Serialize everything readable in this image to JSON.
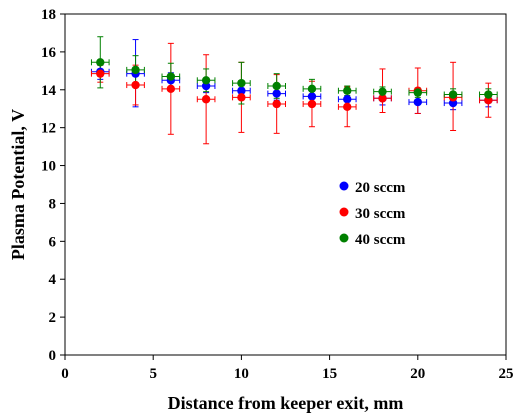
{
  "chart_data": {
    "type": "scatter",
    "title": "",
    "xlabel": "Distance from keeper exit, mm",
    "ylabel": "Plasma Potential, V",
    "xlim": [
      0,
      25
    ],
    "ylim": [
      0,
      18
    ],
    "xticks": [
      0,
      5,
      10,
      15,
      20,
      25
    ],
    "yticks": [
      0,
      2,
      4,
      6,
      8,
      10,
      12,
      14,
      16,
      18
    ],
    "x_error": 0.5,
    "grid": false,
    "legend_position": "right",
    "series": [
      {
        "name": "20 sccm",
        "color": "#0000ff",
        "points": [
          {
            "x": 2,
            "y": 14.95,
            "y_low": 14.55,
            "y_high": 15.3
          },
          {
            "x": 4,
            "y": 14.85,
            "y_low": 13.1,
            "y_high": 16.65
          },
          {
            "x": 6,
            "y": 14.5,
            "y_low": 14.1,
            "y_high": 14.9
          },
          {
            "x": 8,
            "y": 14.2,
            "y_low": 13.85,
            "y_high": 14.55
          },
          {
            "x": 10,
            "y": 13.95,
            "y_low": 13.6,
            "y_high": 14.3
          },
          {
            "x": 12,
            "y": 13.8,
            "y_low": 13.45,
            "y_high": 14.15
          },
          {
            "x": 14,
            "y": 13.65,
            "y_low": 13.3,
            "y_high": 14.0
          },
          {
            "x": 16,
            "y": 13.5,
            "y_low": 13.15,
            "y_high": 13.85
          },
          {
            "x": 18,
            "y": 13.55,
            "y_low": 13.2,
            "y_high": 13.9
          },
          {
            "x": 20,
            "y": 13.35,
            "y_low": 12.75,
            "y_high": 13.9
          },
          {
            "x": 22,
            "y": 13.3,
            "y_low": 12.95,
            "y_high": 13.65
          },
          {
            "x": 24,
            "y": 13.45,
            "y_low": 13.1,
            "y_high": 13.8
          }
        ]
      },
      {
        "name": "30 sccm",
        "color": "#ff0000",
        "points": [
          {
            "x": 2,
            "y": 14.85,
            "y_low": 14.4,
            "y_high": 15.3
          },
          {
            "x": 4,
            "y": 14.25,
            "y_low": 13.2,
            "y_high": 15.3
          },
          {
            "x": 6,
            "y": 14.05,
            "y_low": 11.65,
            "y_high": 16.45
          },
          {
            "x": 8,
            "y": 13.5,
            "y_low": 11.15,
            "y_high": 15.85
          },
          {
            "x": 10,
            "y": 13.6,
            "y_low": 11.75,
            "y_high": 15.45
          },
          {
            "x": 12,
            "y": 13.25,
            "y_low": 11.7,
            "y_high": 14.8
          },
          {
            "x": 14,
            "y": 13.25,
            "y_low": 12.05,
            "y_high": 14.45
          },
          {
            "x": 16,
            "y": 13.1,
            "y_low": 12.05,
            "y_high": 14.15
          },
          {
            "x": 18,
            "y": 13.55,
            "y_low": 12.8,
            "y_high": 15.1
          },
          {
            "x": 20,
            "y": 13.95,
            "y_low": 12.75,
            "y_high": 15.15
          },
          {
            "x": 22,
            "y": 13.6,
            "y_low": 11.85,
            "y_high": 15.45
          },
          {
            "x": 24,
            "y": 13.45,
            "y_low": 12.55,
            "y_high": 14.35
          }
        ]
      },
      {
        "name": "40 sccm",
        "color": "#008000",
        "points": [
          {
            "x": 2,
            "y": 15.45,
            "y_low": 14.1,
            "y_high": 16.8
          },
          {
            "x": 4,
            "y": 15.05,
            "y_low": 14.3,
            "y_high": 15.8
          },
          {
            "x": 6,
            "y": 14.7,
            "y_low": 14.0,
            "y_high": 15.4
          },
          {
            "x": 8,
            "y": 14.5,
            "y_low": 13.9,
            "y_high": 15.1
          },
          {
            "x": 10,
            "y": 14.35,
            "y_low": 13.25,
            "y_high": 15.45
          },
          {
            "x": 12,
            "y": 14.2,
            "y_low": 13.55,
            "y_high": 14.85
          },
          {
            "x": 14,
            "y": 14.05,
            "y_low": 13.55,
            "y_high": 14.55
          },
          {
            "x": 16,
            "y": 13.95,
            "y_low": 13.7,
            "y_high": 14.2
          },
          {
            "x": 18,
            "y": 13.9,
            "y_low": 13.65,
            "y_high": 14.15
          },
          {
            "x": 20,
            "y": 13.85,
            "y_low": 13.6,
            "y_high": 14.1
          },
          {
            "x": 22,
            "y": 13.75,
            "y_low": 13.45,
            "y_high": 14.05
          },
          {
            "x": 24,
            "y": 13.75,
            "y_low": 13.45,
            "y_high": 14.05
          }
        ]
      }
    ]
  }
}
